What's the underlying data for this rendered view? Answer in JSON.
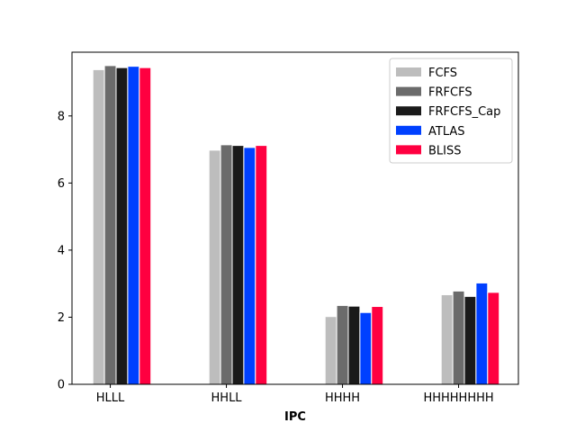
{
  "chart_data": {
    "type": "bar",
    "title": "",
    "xlabel": "IPC",
    "ylabel": "",
    "categories": [
      "HLLL",
      "HHLL",
      "HHHH",
      "HHHHHHHH"
    ],
    "ylim": [
      0,
      9.9
    ],
    "yticks": [
      0,
      2,
      4,
      6,
      8
    ],
    "grid": false,
    "legend_position": "top-right",
    "series": [
      {
        "name": "FCFS",
        "color": "#bdbdbd",
        "values": [
          9.38,
          6.98,
          2.02,
          2.67
        ]
      },
      {
        "name": "FRFCFS",
        "color": "#6b6b6b",
        "values": [
          9.5,
          7.14,
          2.35,
          2.78
        ]
      },
      {
        "name": "FRFCFS_Cap",
        "color": "#1a1a1a",
        "values": [
          9.44,
          7.12,
          2.33,
          2.62
        ]
      },
      {
        "name": "ATLAS",
        "color": "#0040ff",
        "values": [
          9.48,
          7.06,
          2.14,
          3.02
        ]
      },
      {
        "name": "BLISS",
        "color": "#ff0040",
        "values": [
          9.44,
          7.12,
          2.32,
          2.74
        ]
      }
    ]
  }
}
